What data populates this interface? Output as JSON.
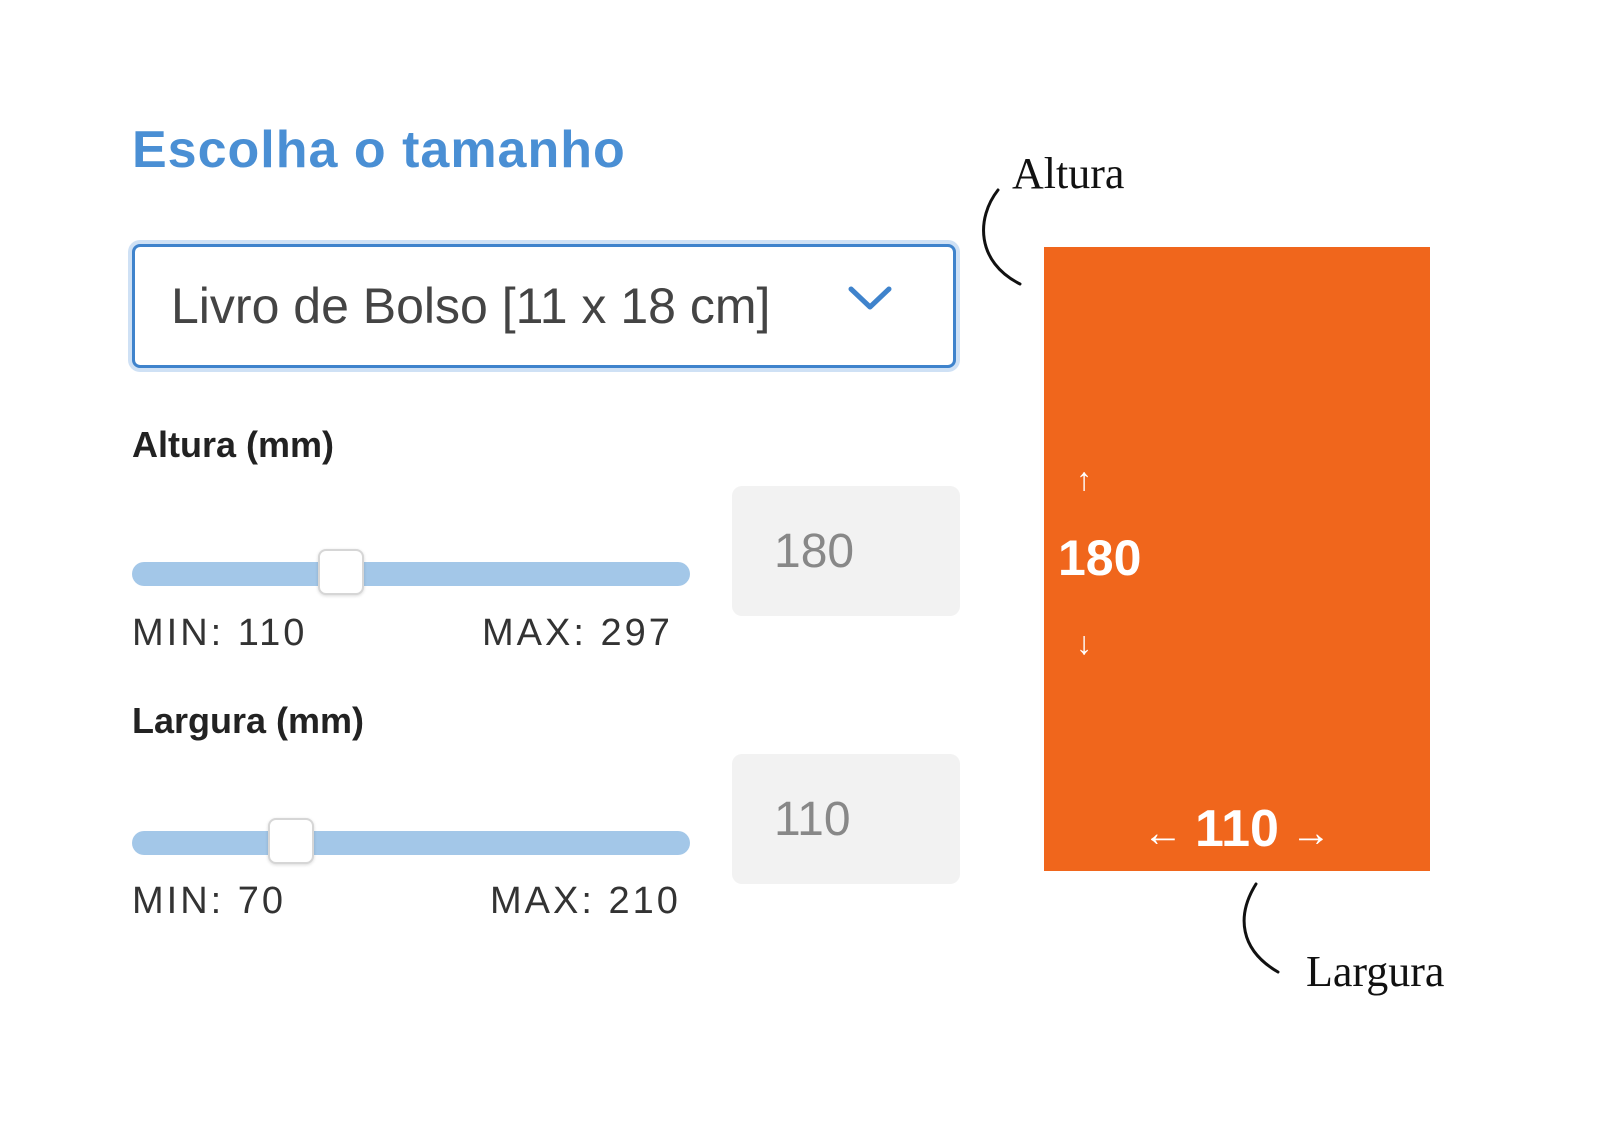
{
  "title": "Escolha o tamanho",
  "size_select": {
    "value": "Livro de Bolso [11 x 18 cm]",
    "icon": "chevron-down-icon"
  },
  "height": {
    "label": "Altura (mm)",
    "value": 180,
    "min": 110,
    "max": 297,
    "min_label": "MIN: 110",
    "max_label": "MAX: 297",
    "input_value": "180"
  },
  "width": {
    "label": "Largura (mm)",
    "value": 110,
    "min": 70,
    "max": 210,
    "min_label": "MIN: 70",
    "max_label": "MAX: 210",
    "input_value": "110"
  },
  "preview": {
    "color": "#f0661c",
    "height_text": "180",
    "width_text": "110",
    "arrow_up": "↑",
    "arrow_down": "↓",
    "arrow_left": "←",
    "arrow_right": "→"
  },
  "annotations": {
    "altura": "Altura",
    "largura": "Largura"
  }
}
